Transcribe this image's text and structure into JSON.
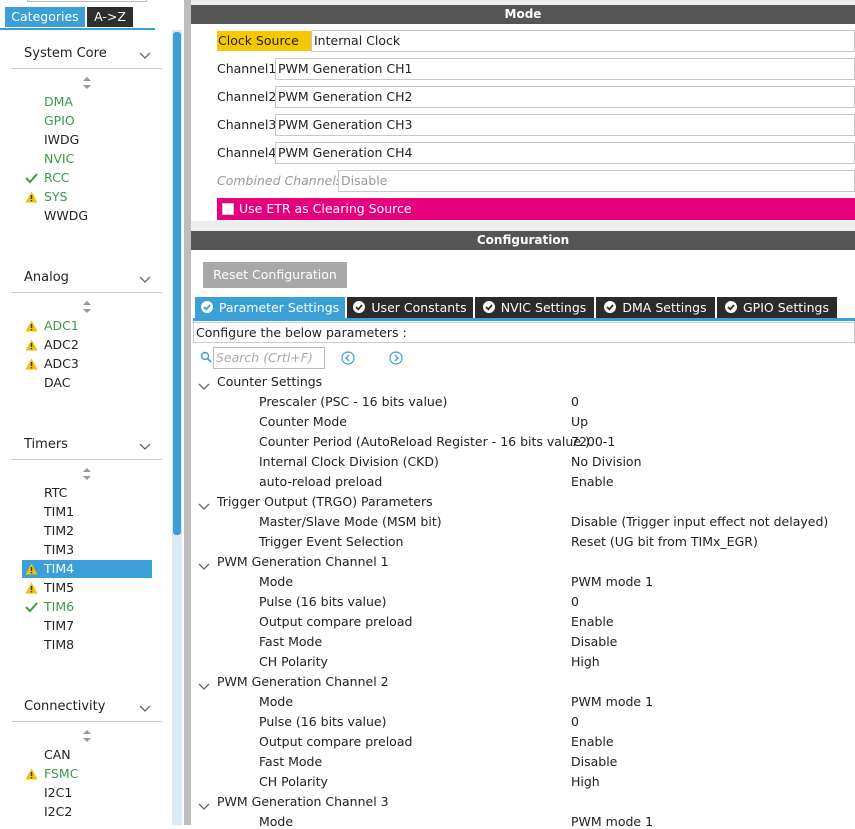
{
  "sidebar": {
    "tabs": [
      "Categories",
      "A->Z"
    ],
    "groups": [
      {
        "title": "System Core",
        "items": [
          {
            "label": "DMA",
            "color": "#3a9a4a"
          },
          {
            "label": "GPIO",
            "color": "#3a9a4a"
          },
          {
            "label": "IWDG"
          },
          {
            "label": "NVIC",
            "color": "#3a9a4a"
          },
          {
            "label": "RCC",
            "color": "#3a9a4a",
            "icon": "check"
          },
          {
            "label": "SYS",
            "color": "#3a9a4a",
            "icon": "warn"
          },
          {
            "label": "WWDG"
          }
        ]
      },
      {
        "title": "Analog",
        "items": [
          {
            "label": "ADC1",
            "color": "#3a9a4a",
            "icon": "warn"
          },
          {
            "label": "ADC2",
            "icon": "warn"
          },
          {
            "label": "ADC3",
            "icon": "warn"
          },
          {
            "label": "DAC"
          }
        ]
      },
      {
        "title": "Timers",
        "items": [
          {
            "label": "RTC"
          },
          {
            "label": "TIM1"
          },
          {
            "label": "TIM2"
          },
          {
            "label": "TIM3"
          },
          {
            "label": "TIM4",
            "icon": "warn",
            "selected": true
          },
          {
            "label": "TIM5",
            "icon": "warn"
          },
          {
            "label": "TIM6",
            "color": "#3a9a4a",
            "icon": "check"
          },
          {
            "label": "TIM7"
          },
          {
            "label": "TIM8"
          }
        ]
      },
      {
        "title": "Connectivity",
        "items": [
          {
            "label": "CAN"
          },
          {
            "label": "FSMC",
            "color": "#3a9a4a",
            "icon": "warn"
          },
          {
            "label": "I2C1"
          },
          {
            "label": "I2C2"
          }
        ]
      }
    ]
  },
  "mode": {
    "title": "Mode",
    "clock_source": {
      "label": "Clock Source",
      "value": "Internal Clock"
    },
    "channels": [
      {
        "label": "Channel1",
        "value": "PWM Generation CH1"
      },
      {
        "label": "Channel2",
        "value": "PWM Generation CH2"
      },
      {
        "label": "Channel3",
        "value": "PWM Generation CH3"
      },
      {
        "label": "Channel4",
        "value": "PWM Generation CH4"
      }
    ],
    "combined": {
      "label": "Combined Channels",
      "value": "Disable"
    },
    "etr": "Use ETR as Clearing Source"
  },
  "configuration": {
    "title": "Configuration",
    "reset": "Reset Configuration",
    "tabs": [
      "Parameter Settings",
      "User Constants",
      "NVIC Settings",
      "DMA Settings",
      "GPIO Settings"
    ],
    "hint": "Configure the below parameters :",
    "search": "Search (Crtl+F)",
    "sections": [
      {
        "title": "Counter Settings",
        "params": [
          [
            "Prescaler (PSC - 16 bits value)",
            "0"
          ],
          [
            "Counter Mode",
            "Up"
          ],
          [
            "Counter Period (AutoReload Register - 16 bits value )",
            "7200-1"
          ],
          [
            "Internal Clock Division (CKD)",
            "No Division"
          ],
          [
            "auto-reload preload",
            "Enable"
          ]
        ]
      },
      {
        "title": "Trigger Output (TRGO) Parameters",
        "params": [
          [
            "Master/Slave Mode (MSM bit)",
            "Disable (Trigger input effect not delayed)"
          ],
          [
            "Trigger Event Selection",
            "Reset (UG bit from TIMx_EGR)"
          ]
        ]
      },
      {
        "title": "PWM Generation Channel 1",
        "params": [
          [
            "Mode",
            "PWM mode 1"
          ],
          [
            "Pulse (16 bits value)",
            "0"
          ],
          [
            "Output compare preload",
            "Enable"
          ],
          [
            "Fast Mode",
            "Disable"
          ],
          [
            "CH Polarity",
            "High"
          ]
        ]
      },
      {
        "title": "PWM Generation Channel 2",
        "params": [
          [
            "Mode",
            "PWM mode 1"
          ],
          [
            "Pulse (16 bits value)",
            "0"
          ],
          [
            "Output compare preload",
            "Enable"
          ],
          [
            "Fast Mode",
            "Disable"
          ],
          [
            "CH Polarity",
            "High"
          ]
        ]
      },
      {
        "title": "PWM Generation Channel 3",
        "params": [
          [
            "Mode",
            "PWM mode 1"
          ]
        ]
      }
    ]
  }
}
